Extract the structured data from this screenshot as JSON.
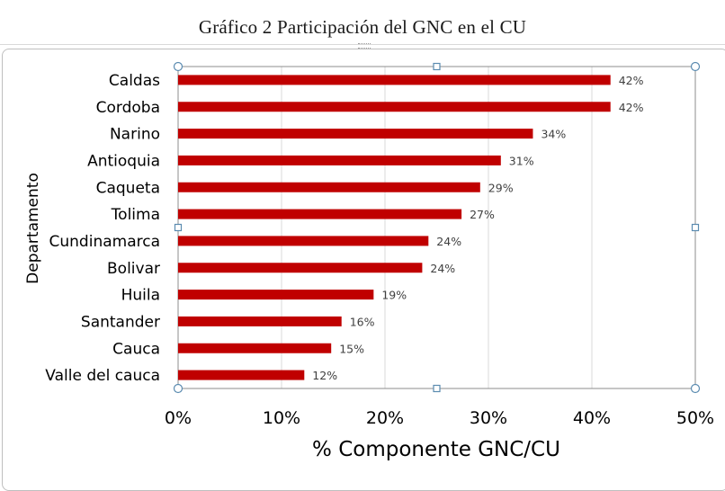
{
  "document": {
    "caption": "Gráfico  2 Participación del GNC en el CU"
  },
  "colors": {
    "bar": "#C00000",
    "gridline": "#d9d9d9",
    "plot_border": "#8c8c8c",
    "handle": "#5b8bb0"
  },
  "chart_data": {
    "type": "bar",
    "orientation": "horizontal",
    "title": "",
    "xlabel": "% Componente GNC/CU",
    "ylabel": "Departamento",
    "xlim": [
      0,
      50
    ],
    "x_ticks": [
      "0%",
      "10%",
      "20%",
      "30%",
      "40%",
      "50%"
    ],
    "grid": true,
    "legend": "none",
    "categories": [
      "Caldas",
      "Cordoba",
      "Narino",
      "Antioquia",
      "Caqueta",
      "Tolima",
      "Cundinamarca",
      "Bolivar",
      "Huila",
      "Santander",
      "Cauca",
      "Valle del cauca"
    ],
    "values": [
      41.8,
      41.8,
      34.3,
      31.2,
      29.2,
      27.4,
      24.2,
      23.6,
      18.9,
      15.8,
      14.8,
      12.2
    ],
    "data_labels": [
      "42%",
      "42%",
      "34%",
      "31%",
      "29%",
      "27%",
      "24%",
      "24%",
      "19%",
      "16%",
      "15%",
      "12%"
    ]
  }
}
